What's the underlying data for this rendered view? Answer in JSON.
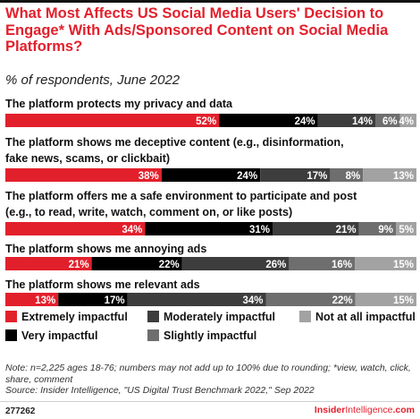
{
  "chart_data": {
    "type": "bar",
    "orientation": "horizontal",
    "stacked": true,
    "title": "What Most Affects US Social Media Users' Decision to Engage* With Ads/Sponsored Content on Social Media Platforms?",
    "subtitle": "% of respondents, June 2022",
    "categories": [
      "The platform protects my privacy and data",
      "The platform shows me deceptive content (e.g., disinformation, fake news, scams, or clickbait)",
      "The platform offers me a safe environment to participate and post (e.g., to read, write, watch, comment on, or like posts)",
      "The platform shows me annoying ads",
      "The platform shows me relevant ads"
    ],
    "series": [
      {
        "name": "Extremely impactful",
        "color": "#e2202c",
        "label_color": "#ffffff",
        "values": [
          52,
          38,
          34,
          21,
          13
        ]
      },
      {
        "name": "Very impactful",
        "color": "#000000",
        "label_color": "#ffffff",
        "values": [
          24,
          24,
          31,
          22,
          17
        ]
      },
      {
        "name": "Moderately impactful",
        "color": "#3d3d3d",
        "label_color": "#ffffff",
        "values": [
          14,
          17,
          21,
          26,
          34
        ]
      },
      {
        "name": "Slightly impactful",
        "color": "#6e6e6e",
        "label_color": "#ffffff",
        "values": [
          6,
          8,
          9,
          16,
          22
        ]
      },
      {
        "name": "Not at all impactful",
        "color": "#a2a2a2",
        "label_color": "#ffffff",
        "values": [
          4,
          13,
          5,
          15,
          15
        ]
      }
    ],
    "value_suffix": "%",
    "legend_position": "bottom",
    "legend_order": [
      "Extremely impactful",
      "Moderately impactful",
      "Not at all impactful",
      "Very impactful",
      "Slightly impactful"
    ],
    "grid": false
  },
  "footer": {
    "note": "Note: n=2,225 ages 18-76; numbers may not add up to 100% due to rounding; *view, watch, click, share, comment",
    "source": "Source: Insider Intelligence, \"US Digital Trust Benchmark 2022,\" Sep 2022",
    "chart_id": "277262",
    "brand_main": "Insider",
    "brand_light": "Intelligence",
    "brand_suffix": ".com"
  }
}
